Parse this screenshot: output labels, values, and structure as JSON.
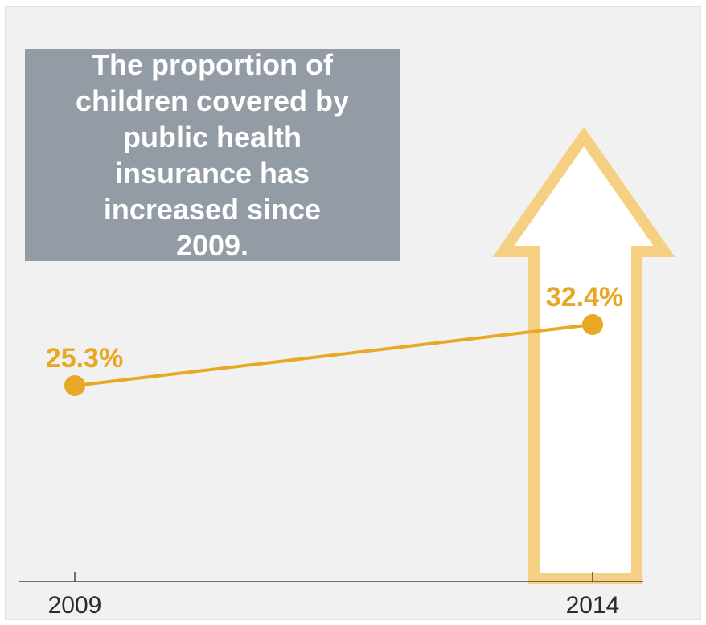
{
  "colors": {
    "panel_background": "#f1f1f1",
    "title_box": "#939ba4",
    "title_text": "#ffffff",
    "series": "#e8a824",
    "arrow_outline": "#f5d083",
    "arrow_fill": "#ffffff",
    "axis": "#444444"
  },
  "chart_data": {
    "type": "line",
    "title": "The proportion of children covered by public health insurance has increased since 2009.",
    "x": [
      "2009",
      "2014"
    ],
    "series": [
      {
        "values": [
          25.3,
          32.4
        ],
        "labels": [
          "25.3%",
          "32.4%"
        ]
      }
    ],
    "y_unit": "%",
    "grid": false,
    "decoration": "up-arrow"
  }
}
